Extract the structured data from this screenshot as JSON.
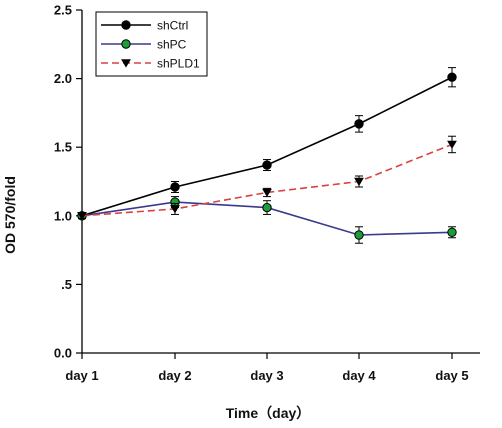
{
  "chart_data": {
    "type": "line",
    "xlabel": "Time（day）",
    "ylabel": "OD 570/fold",
    "categories": [
      "day 1",
      "day 2",
      "day 3",
      "day 4",
      "day 5"
    ],
    "ylim": [
      0,
      2.5
    ],
    "yticks": [
      {
        "value": 0.0,
        "label": "0.0"
      },
      {
        "value": 0.5,
        "label": ".5"
      },
      {
        "value": 1.0,
        "label": "1.0"
      },
      {
        "value": 1.5,
        "label": "1.5"
      },
      {
        "value": 2.0,
        "label": "2.0"
      },
      {
        "value": 2.5,
        "label": "2.5"
      }
    ],
    "grid": false,
    "legend_position": "top-left",
    "series": [
      {
        "name": "shCtrl",
        "values": [
          1.0,
          1.21,
          1.37,
          1.67,
          2.01
        ],
        "errors": [
          0.02,
          0.04,
          0.04,
          0.06,
          0.07
        ],
        "color": "#000000",
        "marker": "circle",
        "marker_fill": "#000000",
        "dash": "solid"
      },
      {
        "name": "shPC",
        "values": [
          1.0,
          1.1,
          1.06,
          0.86,
          0.88
        ],
        "errors": [
          0.02,
          0.04,
          0.05,
          0.06,
          0.04
        ],
        "color": "#3a3a8c",
        "marker": "circle",
        "marker_fill": "#1a9e3a",
        "dash": "solid"
      },
      {
        "name": "shPLD1",
        "values": [
          1.0,
          1.05,
          1.17,
          1.25,
          1.52
        ],
        "errors": [
          0.02,
          0.04,
          0.03,
          0.04,
          0.06
        ],
        "color": "#d94040",
        "marker": "triangle-down",
        "marker_fill": "#000000",
        "dash": "dashed"
      }
    ]
  }
}
